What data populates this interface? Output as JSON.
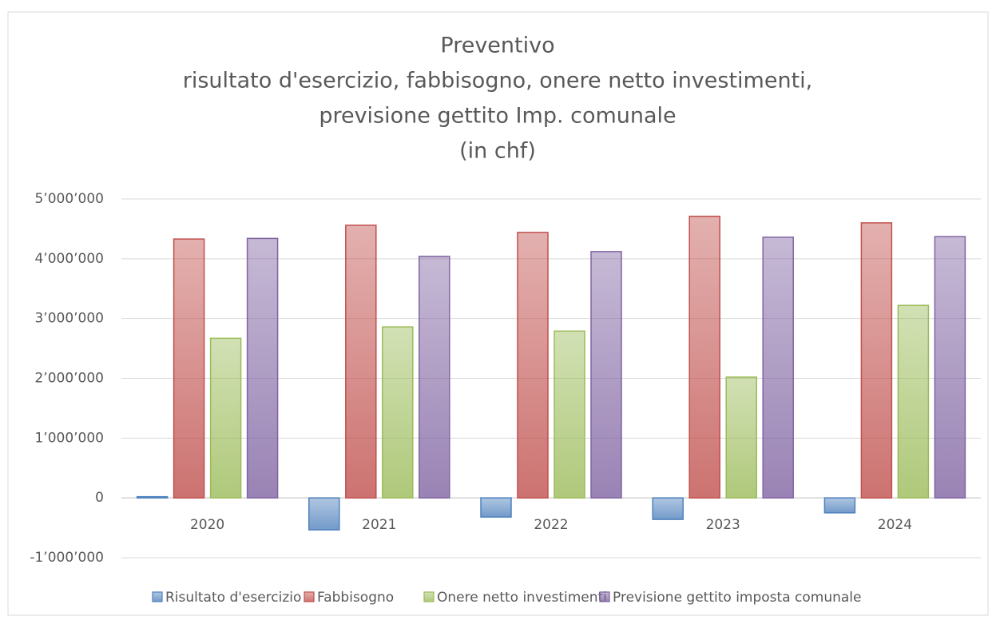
{
  "chart_data": {
    "type": "bar",
    "title": [
      "Preventivo",
      "risultato d'esercizio, fabbisogno, onere netto investimenti,",
      "previsione gettito Imp. comunale",
      "(in chf)"
    ],
    "categories": [
      "2020",
      "2021",
      "2022",
      "2023",
      "2024"
    ],
    "series": [
      {
        "name": "Risultato d'esercizio",
        "color": "#4f81bd",
        "values": [
          20000,
          -535000,
          -320000,
          -360000,
          -250000
        ]
      },
      {
        "name": "Fabbisogno",
        "color": "#c0504d",
        "values": [
          4330000,
          4560000,
          4440000,
          4710000,
          4600000
        ]
      },
      {
        "name": "Onere netto investimenti",
        "color": "#9bbb59",
        "values": [
          2670000,
          2860000,
          2790000,
          2020000,
          3220000
        ]
      },
      {
        "name": "Previsione gettito imposta comunale",
        "color": "#8064a2",
        "values": [
          4340000,
          4040000,
          4120000,
          4360000,
          4370000
        ]
      }
    ],
    "ylim": [
      -1000000,
      5000000
    ],
    "yticks": [
      {
        "value": -1000000,
        "label": "-1’000’000"
      },
      0,
      {
        "value": 1000000,
        "label": "1’000’000"
      },
      {
        "value": 2000000,
        "label": "2’000’000"
      },
      {
        "value": 3000000,
        "label": "3’000’000"
      },
      {
        "value": 4000000,
        "label": "4’000’000"
      },
      {
        "value": 5000000,
        "label": "5’000’000"
      }
    ],
    "grid": true,
    "legend": "bottom"
  }
}
